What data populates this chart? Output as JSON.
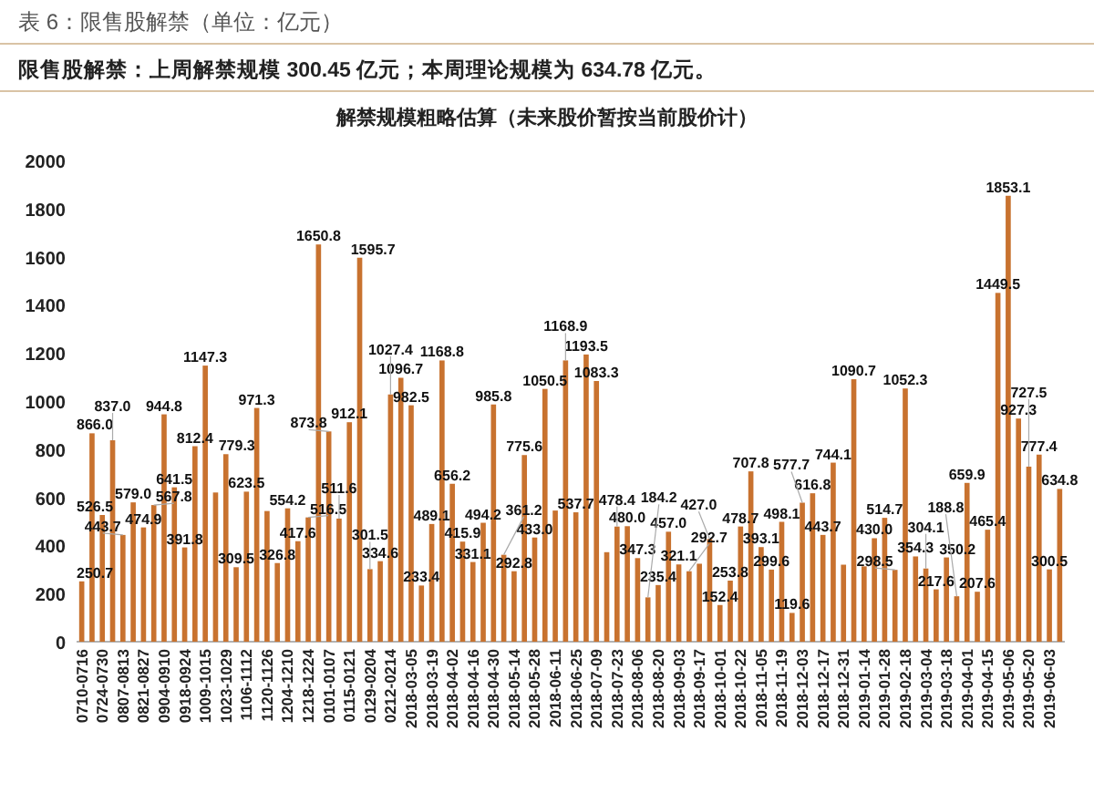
{
  "chart_data": {
    "type": "bar",
    "title": "表 6：限售股解禁（单位：亿元）",
    "subtitle": "限售股解禁：上周解禁规模 300.45 亿元；本周理论规模为 634.78 亿元。",
    "annotations": [
      "解禁规模粗略估算（未来股价暂按当前股价计）"
    ],
    "categories": [
      "0710-0716",
      null,
      "0724-0730",
      null,
      "0807-0813",
      null,
      "0821-0827",
      null,
      "0904-0910",
      null,
      "0918-0924",
      null,
      "1009-1015",
      null,
      "1023-1029",
      null,
      "1106-1112",
      null,
      "1120-1126",
      null,
      "1204-1210",
      null,
      "1218-1224",
      null,
      "0101-0107",
      null,
      "0115-0121",
      null,
      "0129-0204",
      null,
      "0212-0214",
      null,
      "2018-03-05",
      null,
      "2018-03-19",
      null,
      "2018-04-02",
      null,
      "2018-04-16",
      null,
      "2018-04-30",
      null,
      "2018-05-14",
      null,
      "2018-05-28",
      null,
      "2018-06-11",
      null,
      "2018-06-25",
      null,
      "2018-07-09",
      null,
      "2018-07-23",
      null,
      "2018-08-06",
      null,
      "2018-08-20",
      null,
      "2018-09-03",
      null,
      "2018-09-17",
      null,
      "2018-10-01",
      null,
      "2018-10-22",
      null,
      "2018-11-05",
      null,
      "2018-11-19",
      null,
      "2018-12-03",
      null,
      "2018-12-17",
      null,
      "2018-12-31",
      null,
      "2019-01-14",
      null,
      "2019-01-28",
      null,
      "2019-02-18",
      null,
      "2019-03-04",
      null,
      "2019-03-18",
      null,
      "2019-04-01",
      null,
      "2019-04-15",
      null,
      "2019-05-06",
      null,
      "2019-05-20",
      null,
      "2019-06-03",
      null
    ],
    "series": [
      {
        "color": "#c8722f",
        "values": [
          250.7,
          866.0,
          526.5,
          837.0,
          443.7,
          579.0,
          474.9,
          567.8,
          944.8,
          641.5,
          391.8,
          812.4,
          1147.3,
          620,
          779.3,
          309.5,
          623.5,
          971.3,
          543,
          326.8,
          554.2,
          417.6,
          516.5,
          1650.8,
          873.8,
          511.6,
          912.1,
          1595.7,
          301.5,
          334.6,
          1027.4,
          1096.7,
          982.5,
          233.4,
          489.1,
          1168.8,
          656.2,
          415.9,
          331.1,
          494.2,
          985.8,
          361.2,
          292.8,
          775.6,
          433.0,
          1050.5,
          545,
          1168.9,
          537.7,
          1193.5,
          1083.3,
          372,
          478.4,
          480.0,
          347.3,
          184.2,
          235.4,
          457.0,
          321.1,
          292.7,
          324,
          427.0,
          152.4,
          253.8,
          478.7,
          707.8,
          393.1,
          299.6,
          498.1,
          119.6,
          577.7,
          616.8,
          443.7,
          744.1,
          320,
          1090.7,
          313,
          430.0,
          514.7,
          298.5,
          1052.3,
          354.3,
          304.1,
          217.6,
          350.2,
          188.8,
          659.9,
          207.6,
          465.4,
          1449.5,
          1853.1,
          927.3,
          727.5,
          777.4,
          300.5,
          634.8
        ],
        "value_labels": [
          "250.7",
          "866.0",
          "526.5",
          "837.0",
          "443.7",
          "579.0",
          "474.9",
          "567.8",
          "944.8",
          "641.5",
          "391.8",
          "812.4",
          "1147.3",
          null,
          "779.3",
          "309.5",
          "623.5",
          "971.3",
          null,
          "326.8",
          "554.2",
          "417.6",
          "516.5",
          "1650.8",
          "873.8",
          "511.6",
          "912.1",
          "1595.7",
          "301.5",
          "334.6",
          "1027.4",
          "1096.7",
          "982.5",
          "233.4",
          "489.1",
          "1168.8",
          "656.2",
          "415.9",
          "331.1",
          "494.2",
          "985.8",
          "361.2",
          "292.8",
          "775.6",
          "433.0",
          "1050.5",
          null,
          "1168.9",
          "537.7",
          "1193.5",
          "1083.3",
          null,
          "478.4",
          "480.0",
          "347.3",
          "184.2",
          "235.4",
          "457.0",
          "321.1",
          "292.7",
          null,
          "427.0",
          "152.4",
          "253.8",
          "478.7",
          "707.8",
          "393.1",
          "299.6",
          "498.1",
          "119.6",
          "577.7",
          "616.8",
          "443.7",
          "744.1",
          null,
          "1090.7",
          null,
          "430.0",
          "514.7",
          "298.5",
          "1052.3",
          "354.3",
          "304.1",
          "217.6",
          "350.2",
          "188.8",
          "659.9",
          "207.6",
          "465.4",
          "1449.5",
          "1853.1",
          "927.3",
          "727.5",
          "777.4",
          "300.5",
          "634.8"
        ]
      }
    ],
    "ylim": [
      0,
      2000
    ],
    "yticks": [
      0,
      200,
      400,
      600,
      800,
      1000,
      1200,
      1400,
      1600,
      1800,
      2000
    ],
    "grid": false
  }
}
